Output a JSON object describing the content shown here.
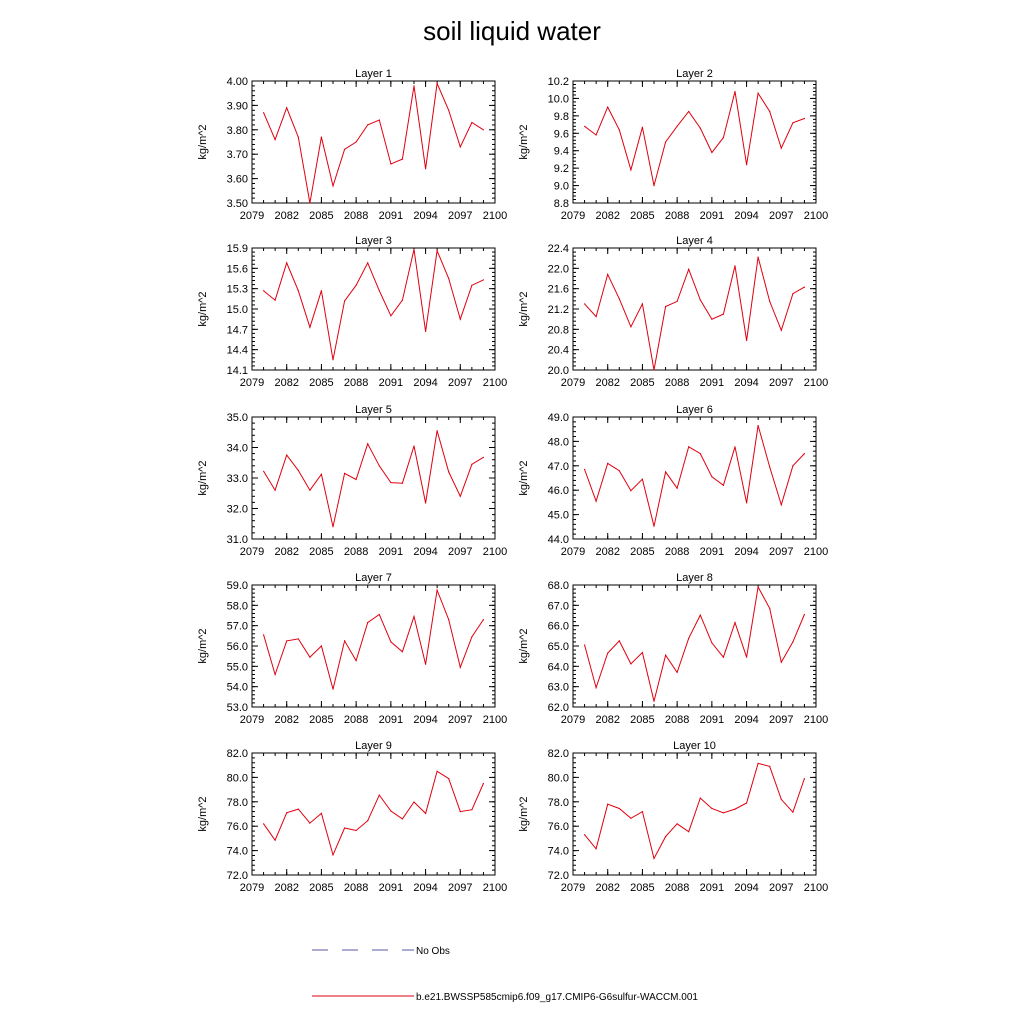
{
  "figure": {
    "title": "soil liquid water",
    "legend": {
      "obs_label": "No Obs",
      "obs_color": "#5a5aa8",
      "model_label": "b.e21.BWSSP585cmip6.f09_g17.CMIP6-G6sulfur-WACCM.001",
      "model_color": "#e0000f"
    }
  },
  "chart_data": [
    {
      "type": "line",
      "title": "Layer 1",
      "ylabel": "kg/m^2",
      "xlim": [
        2079,
        2100
      ],
      "xticks": [
        2079,
        2082,
        2085,
        2088,
        2091,
        2094,
        2097,
        2100
      ],
      "ylim": [
        3.5,
        4.0
      ],
      "yticks": [
        "3.50",
        "3.60",
        "3.70",
        "3.80",
        "3.90",
        "4.00"
      ],
      "color": "#e0000f",
      "x": [
        2080,
        2081,
        2082,
        2083,
        2084,
        2085,
        2086,
        2087,
        2088,
        2089,
        2090,
        2091,
        2092,
        2093,
        2094,
        2095,
        2096,
        2097,
        2098,
        2099
      ],
      "values": [
        3.87,
        3.76,
        3.89,
        3.77,
        3.5,
        3.77,
        3.57,
        3.72,
        3.75,
        3.82,
        3.84,
        3.66,
        3.68,
        3.98,
        3.64,
        3.99,
        3.88,
        3.73,
        3.83,
        3.8
      ]
    },
    {
      "type": "line",
      "title": "Layer 2",
      "ylabel": "kg/m^2",
      "xlim": [
        2079,
        2100
      ],
      "xticks": [
        2079,
        2082,
        2085,
        2088,
        2091,
        2094,
        2097,
        2100
      ],
      "ylim": [
        8.8,
        10.2
      ],
      "yticks": [
        "8.8",
        "9.0",
        "9.2",
        "9.4",
        "9.6",
        "9.8",
        "10.0",
        "10.2"
      ],
      "color": "#e0000f",
      "x": [
        2080,
        2081,
        2082,
        2083,
        2084,
        2085,
        2086,
        2087,
        2088,
        2089,
        2090,
        2091,
        2092,
        2093,
        2094,
        2095,
        2096,
        2097,
        2098,
        2099
      ],
      "values": [
        9.68,
        9.58,
        9.9,
        9.64,
        9.18,
        9.67,
        9.0,
        9.5,
        9.68,
        9.85,
        9.66,
        9.38,
        9.55,
        10.08,
        9.24,
        10.06,
        9.85,
        9.43,
        9.72,
        9.77
      ]
    },
    {
      "type": "line",
      "title": "Layer 3",
      "ylabel": "kg/m^2",
      "xlim": [
        2079,
        2100
      ],
      "xticks": [
        2079,
        2082,
        2085,
        2088,
        2091,
        2094,
        2097,
        2100
      ],
      "ylim": [
        14.1,
        15.9
      ],
      "yticks": [
        "14.1",
        "14.4",
        "14.7",
        "15.0",
        "15.3",
        "15.6",
        "15.9"
      ],
      "color": "#e0000f",
      "x": [
        2080,
        2081,
        2082,
        2083,
        2084,
        2085,
        2086,
        2087,
        2088,
        2089,
        2090,
        2091,
        2092,
        2093,
        2094,
        2095,
        2096,
        2097,
        2098,
        2099
      ],
      "values": [
        15.27,
        15.13,
        15.68,
        15.27,
        14.73,
        15.27,
        14.25,
        15.12,
        15.35,
        15.68,
        15.27,
        14.9,
        15.13,
        15.88,
        14.67,
        15.86,
        15.45,
        14.85,
        15.35,
        15.43
      ]
    },
    {
      "type": "line",
      "title": "Layer 4",
      "ylabel": "kg/m^2",
      "xlim": [
        2079,
        2100
      ],
      "xticks": [
        2079,
        2082,
        2085,
        2088,
        2091,
        2094,
        2097,
        2100
      ],
      "ylim": [
        20.0,
        22.4
      ],
      "yticks": [
        "20.0",
        "20.4",
        "20.8",
        "21.2",
        "21.6",
        "22.0",
        "22.4"
      ],
      "color": "#e0000f",
      "x": [
        2080,
        2081,
        2082,
        2083,
        2084,
        2085,
        2086,
        2087,
        2088,
        2089,
        2090,
        2091,
        2092,
        2093,
        2094,
        2095,
        2096,
        2097,
        2098,
        2099
      ],
      "values": [
        21.3,
        21.05,
        21.88,
        21.4,
        20.85,
        21.3,
        20.0,
        21.25,
        21.35,
        21.98,
        21.38,
        21.0,
        21.1,
        22.05,
        20.58,
        22.22,
        21.35,
        20.78,
        21.5,
        21.63
      ]
    },
    {
      "type": "line",
      "title": "Layer 5",
      "ylabel": "kg/m^2",
      "xlim": [
        2079,
        2100
      ],
      "xticks": [
        2079,
        2082,
        2085,
        2088,
        2091,
        2094,
        2097,
        2100
      ],
      "ylim": [
        31.0,
        35.0
      ],
      "yticks": [
        "31.0",
        "32.0",
        "33.0",
        "34.0",
        "35.0"
      ],
      "color": "#e0000f",
      "x": [
        2080,
        2081,
        2082,
        2083,
        2084,
        2085,
        2086,
        2087,
        2088,
        2089,
        2090,
        2091,
        2092,
        2093,
        2094,
        2095,
        2096,
        2097,
        2098,
        2099
      ],
      "values": [
        33.22,
        32.6,
        33.75,
        33.25,
        32.6,
        33.12,
        31.4,
        33.15,
        32.95,
        34.12,
        33.4,
        32.85,
        32.83,
        34.05,
        32.18,
        34.55,
        33.2,
        32.4,
        33.45,
        33.68
      ]
    },
    {
      "type": "line",
      "title": "Layer 6",
      "ylabel": "kg/m^2",
      "xlim": [
        2079,
        2100
      ],
      "xticks": [
        2079,
        2082,
        2085,
        2088,
        2091,
        2094,
        2097,
        2100
      ],
      "ylim": [
        44.0,
        49.0
      ],
      "yticks": [
        "44.0",
        "45.0",
        "46.0",
        "47.0",
        "48.0",
        "49.0"
      ],
      "color": "#e0000f",
      "x": [
        2080,
        2081,
        2082,
        2083,
        2084,
        2085,
        2086,
        2087,
        2088,
        2089,
        2090,
        2091,
        2092,
        2093,
        2094,
        2095,
        2096,
        2097,
        2098,
        2099
      ],
      "values": [
        46.85,
        45.55,
        47.1,
        46.8,
        45.98,
        46.45,
        44.52,
        46.75,
        46.08,
        47.78,
        47.5,
        46.55,
        46.2,
        47.78,
        45.48,
        48.65,
        46.95,
        45.4,
        47.0,
        47.5
      ]
    },
    {
      "type": "line",
      "title": "Layer 7",
      "ylabel": "kg/m^2",
      "xlim": [
        2079,
        2100
      ],
      "xticks": [
        2079,
        2082,
        2085,
        2088,
        2091,
        2094,
        2097,
        2100
      ],
      "ylim": [
        53.0,
        59.0
      ],
      "yticks": [
        "53.0",
        "54.0",
        "55.0",
        "56.0",
        "57.0",
        "58.0",
        "59.0"
      ],
      "color": "#e0000f",
      "x": [
        2080,
        2081,
        2082,
        2083,
        2084,
        2085,
        2086,
        2087,
        2088,
        2089,
        2090,
        2091,
        2092,
        2093,
        2094,
        2095,
        2096,
        2097,
        2098,
        2099
      ],
      "values": [
        56.55,
        54.6,
        56.25,
        56.35,
        55.45,
        56.0,
        53.88,
        56.25,
        55.28,
        57.15,
        57.55,
        56.2,
        55.72,
        57.45,
        55.1,
        58.75,
        57.3,
        54.95,
        56.45,
        57.3
      ]
    },
    {
      "type": "line",
      "title": "Layer 8",
      "ylabel": "kg/m^2",
      "xlim": [
        2079,
        2100
      ],
      "xticks": [
        2079,
        2082,
        2085,
        2088,
        2091,
        2094,
        2097,
        2100
      ],
      "ylim": [
        62.0,
        68.0
      ],
      "yticks": [
        "62.0",
        "63.0",
        "64.0",
        "65.0",
        "66.0",
        "67.0",
        "68.0"
      ],
      "color": "#e0000f",
      "x": [
        2080,
        2081,
        2082,
        2083,
        2084,
        2085,
        2086,
        2087,
        2088,
        2089,
        2090,
        2091,
        2092,
        2093,
        2094,
        2095,
        2096,
        2097,
        2098,
        2099
      ],
      "values": [
        65.05,
        62.95,
        64.65,
        65.25,
        64.12,
        64.68,
        62.28,
        64.55,
        63.7,
        65.38,
        66.52,
        65.15,
        64.45,
        66.15,
        64.45,
        67.9,
        66.85,
        64.2,
        65.2,
        66.55
      ]
    },
    {
      "type": "line",
      "title": "Layer 9",
      "ylabel": "kg/m^2",
      "xlim": [
        2079,
        2100
      ],
      "xticks": [
        2079,
        2082,
        2085,
        2088,
        2091,
        2094,
        2097,
        2100
      ],
      "ylim": [
        72.0,
        82.0
      ],
      "yticks": [
        "72.0",
        "74.0",
        "76.0",
        "78.0",
        "80.0",
        "82.0"
      ],
      "color": "#e0000f",
      "x": [
        2080,
        2081,
        2082,
        2083,
        2084,
        2085,
        2086,
        2087,
        2088,
        2089,
        2090,
        2091,
        2092,
        2093,
        2094,
        2095,
        2096,
        2097,
        2098,
        2099
      ],
      "values": [
        76.2,
        74.85,
        77.1,
        77.4,
        76.25,
        77.05,
        73.65,
        75.85,
        75.65,
        76.45,
        78.55,
        77.25,
        76.6,
        77.98,
        77.05,
        80.5,
        79.9,
        77.2,
        77.35,
        79.5
      ]
    },
    {
      "type": "line",
      "title": "Layer 10",
      "ylabel": "kg/m^2",
      "xlim": [
        2079,
        2100
      ],
      "xticks": [
        2079,
        2082,
        2085,
        2088,
        2091,
        2094,
        2097,
        2100
      ],
      "ylim": [
        72.0,
        82.0
      ],
      "yticks": [
        "72.0",
        "74.0",
        "76.0",
        "78.0",
        "80.0",
        "82.0"
      ],
      "color": "#e0000f",
      "x": [
        2080,
        2081,
        2082,
        2083,
        2084,
        2085,
        2086,
        2087,
        2088,
        2089,
        2090,
        2091,
        2092,
        2093,
        2094,
        2095,
        2096,
        2097,
        2098,
        2099
      ],
      "values": [
        75.3,
        74.15,
        77.8,
        77.45,
        76.65,
        77.2,
        73.35,
        75.15,
        76.2,
        75.55,
        78.3,
        77.45,
        77.1,
        77.4,
        77.9,
        81.15,
        80.9,
        78.2,
        77.15,
        79.9
      ]
    }
  ]
}
